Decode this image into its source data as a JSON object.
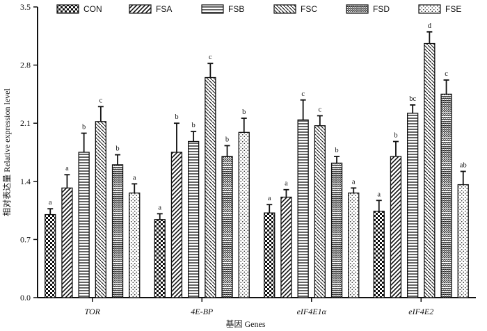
{
  "chart_data": {
    "type": "bar",
    "title": "",
    "xlabel": "基因 Genes",
    "ylabel": "相对表达量 Relative expression level",
    "ylim": [
      0,
      3.5
    ],
    "yticks": [
      "0.0",
      "0.7",
      "1.4",
      "2.1",
      "2.8",
      "3.5"
    ],
    "categories": [
      "TOR",
      "4E-BP",
      "eIF4E1α",
      "eIF4E2"
    ],
    "legend_position": "top",
    "grid": false,
    "series": [
      {
        "name": "CON",
        "pattern": "checker",
        "values": [
          1.0,
          0.94,
          1.02,
          1.04
        ],
        "errors": [
          0.07,
          0.07,
          0.1,
          0.13
        ],
        "labels": [
          "a",
          "a",
          "a",
          "a"
        ]
      },
      {
        "name": "FSA",
        "pattern": "diag-up",
        "values": [
          1.32,
          1.75,
          1.21,
          1.7
        ],
        "errors": [
          0.16,
          0.35,
          0.09,
          0.18
        ],
        "labels": [
          "a",
          "b",
          "a",
          "b"
        ]
      },
      {
        "name": "FSB",
        "pattern": "horizontal",
        "values": [
          1.75,
          1.88,
          2.14,
          2.22
        ],
        "errors": [
          0.23,
          0.12,
          0.24,
          0.1
        ],
        "labels": [
          "b",
          "b",
          "c",
          "bc"
        ]
      },
      {
        "name": "FSC",
        "pattern": "diag-down",
        "values": [
          2.12,
          2.65,
          2.07,
          3.06
        ],
        "errors": [
          0.18,
          0.17,
          0.12,
          0.14
        ],
        "labels": [
          "c",
          "c",
          "c",
          "d"
        ]
      },
      {
        "name": "FSD",
        "pattern": "zigzag",
        "values": [
          1.6,
          1.7,
          1.62,
          2.45
        ],
        "errors": [
          0.12,
          0.13,
          0.08,
          0.17
        ],
        "labels": [
          "b",
          "b",
          "b",
          "c"
        ]
      },
      {
        "name": "FSE",
        "pattern": "dots",
        "values": [
          1.26,
          1.99,
          1.26,
          1.36
        ],
        "errors": [
          0.11,
          0.17,
          0.06,
          0.16
        ],
        "labels": [
          "a",
          "b",
          "a",
          "ab"
        ]
      }
    ]
  }
}
